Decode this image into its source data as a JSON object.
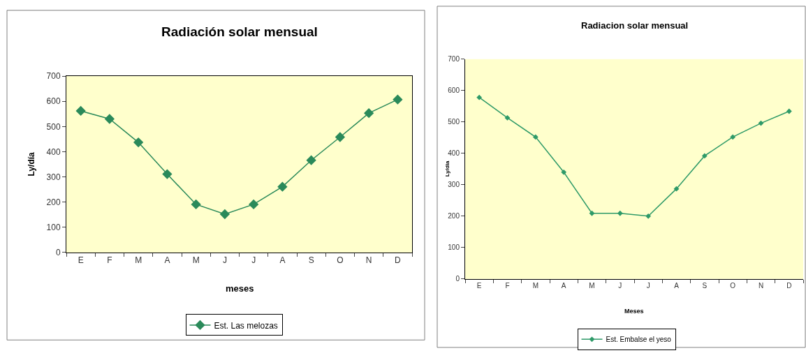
{
  "chart_data": [
    {
      "type": "line",
      "title": "Radiación solar mensual",
      "xlabel": "meses",
      "ylabel": "Ly/día",
      "categories": [
        "E",
        "F",
        "M",
        "A",
        "M",
        "J",
        "J",
        "A",
        "S",
        "O",
        "N",
        "D"
      ],
      "series": [
        {
          "name": "Est. Las melozas",
          "color": "#2a8a5a",
          "values": [
            562,
            530,
            437,
            311,
            191,
            152,
            191,
            261,
            366,
            458,
            553,
            607
          ]
        }
      ],
      "ylim": [
        0,
        700
      ],
      "yticks": [
        0,
        100,
        200,
        300,
        400,
        500,
        600,
        700
      ],
      "grid": false,
      "legend": "bottom",
      "marker": "diamond",
      "line_style": "solid"
    },
    {
      "type": "line",
      "title": "Radiacion solar mensual",
      "xlabel": "Meses",
      "ylabel": "Ly/dia",
      "categories": [
        "E",
        "F",
        "M",
        "A",
        "M",
        "J",
        "J",
        "A",
        "S",
        "O",
        "N",
        "D"
      ],
      "series": [
        {
          "name": "Est. Embalse el yeso",
          "color": "#2e9a68",
          "values": [
            578,
            513,
            452,
            340,
            209,
            209,
            200,
            287,
            392,
            452,
            496,
            534
          ]
        }
      ],
      "ylim": [
        0,
        700
      ],
      "yticks": [
        0,
        100,
        200,
        300,
        400,
        500,
        600,
        700
      ],
      "grid": false,
      "legend": "bottom",
      "marker": "diamond",
      "line_style": "solid"
    }
  ]
}
